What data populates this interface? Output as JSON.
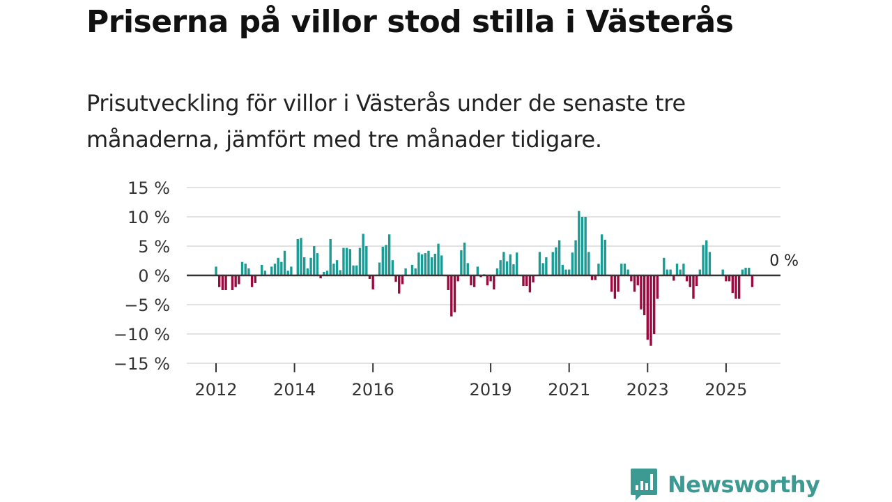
{
  "title": "Priserna på villor stod stilla i Västerås",
  "subtitle": "Prisutveckling för villor i Västerås under de senaste tre månaderna, jämfört med tre månader tidigare.",
  "logo": {
    "text": "Newsworthy"
  },
  "colors": {
    "positive": "#1a9c94",
    "negative": "#9b0a3f",
    "zero_line": "#333333",
    "grid": "#d9d9d9",
    "logo": "#3d9a93"
  },
  "chart_data": {
    "type": "bar",
    "title": "",
    "xlabel": "",
    "ylabel": "",
    "ylim": [
      -15,
      15
    ],
    "y_ticks": [
      15,
      10,
      5,
      0,
      -5,
      -10,
      -15
    ],
    "y_tick_labels": [
      "15 %",
      "10 %",
      "5 %",
      "0 %",
      "−5 %",
      "−10 %",
      "−15 %"
    ],
    "x_ticks": [
      2012,
      2014,
      2016,
      2019,
      2021,
      2023,
      2025
    ],
    "x_tick_labels": [
      "2012",
      "2014",
      "2016",
      "2019",
      "2021",
      "2023",
      "2025"
    ],
    "start": {
      "year": 2012,
      "month": 1
    },
    "annotation": {
      "text": "0 %",
      "at_index": 168
    },
    "categories": [
      "2012-01",
      "2012-02",
      "2012-03",
      "2012-04",
      "2012-05",
      "2012-06",
      "2012-07",
      "2012-08",
      "2012-09",
      "2012-10",
      "2012-11",
      "2012-12",
      "2013-01",
      "2013-02",
      "2013-03",
      "2013-04",
      "2013-05",
      "2013-06",
      "2013-07",
      "2013-08",
      "2013-09",
      "2013-10",
      "2013-11",
      "2013-12",
      "2014-01",
      "2014-02",
      "2014-03",
      "2014-04",
      "2014-05",
      "2014-06",
      "2014-07",
      "2014-08",
      "2014-09",
      "2014-10",
      "2014-11",
      "2014-12",
      "2015-01",
      "2015-02",
      "2015-03",
      "2015-04",
      "2015-05",
      "2015-06",
      "2015-07",
      "2015-08",
      "2015-09",
      "2015-10",
      "2015-11",
      "2015-12",
      "2016-01",
      "2016-02",
      "2016-03",
      "2016-04",
      "2016-05",
      "2016-06",
      "2016-07",
      "2016-08",
      "2016-09",
      "2016-10",
      "2016-11",
      "2016-12",
      "2017-01",
      "2017-02",
      "2017-03",
      "2017-04",
      "2017-05",
      "2017-06",
      "2017-07",
      "2017-08",
      "2017-09",
      "2017-10",
      "2017-11",
      "2017-12",
      "2018-01",
      "2018-02",
      "2018-03",
      "2018-04",
      "2018-05",
      "2018-06",
      "2018-07",
      "2018-08",
      "2018-09",
      "2018-10",
      "2018-11",
      "2018-12",
      "2019-01",
      "2019-02",
      "2019-03",
      "2019-04",
      "2019-05",
      "2019-06",
      "2019-07",
      "2019-08",
      "2019-09",
      "2019-10",
      "2019-11",
      "2019-12",
      "2020-01",
      "2020-02",
      "2020-03",
      "2020-04",
      "2020-05",
      "2020-06",
      "2020-07",
      "2020-08",
      "2020-09",
      "2020-10",
      "2020-11",
      "2020-12",
      "2021-01",
      "2021-02",
      "2021-03",
      "2021-04",
      "2021-05",
      "2021-06",
      "2021-07",
      "2021-08",
      "2021-09",
      "2021-10",
      "2021-11",
      "2021-12",
      "2022-01",
      "2022-02",
      "2022-03",
      "2022-04",
      "2022-05",
      "2022-06",
      "2022-07",
      "2022-08",
      "2022-09",
      "2022-10",
      "2022-11",
      "2022-12",
      "2023-01",
      "2023-02",
      "2023-03",
      "2023-04",
      "2023-05",
      "2023-06",
      "2023-07",
      "2023-08",
      "2023-09",
      "2023-10",
      "2023-11",
      "2023-12",
      "2024-01",
      "2024-02",
      "2024-03",
      "2024-04",
      "2024-05",
      "2024-06",
      "2024-07",
      "2024-08",
      "2024-09",
      "2024-10",
      "2024-11",
      "2024-12",
      "2025-01",
      "2025-02",
      "2025-03",
      "2025-04",
      "2025-05",
      "2025-06",
      "2025-07",
      "2025-08",
      "2025-09"
    ],
    "values": [
      1.5,
      -2,
      -2.5,
      -2.5,
      0,
      -2.5,
      -2,
      -1.5,
      2.3,
      2,
      1.2,
      -2,
      -1.3,
      0,
      1.8,
      0.8,
      0,
      1.5,
      2,
      3,
      2.3,
      4.2,
      0.8,
      1.5,
      0,
      6.2,
      6.4,
      3.1,
      1.2,
      3,
      5,
      3.8,
      -0.5,
      0.6,
      0.8,
      6.2,
      2,
      2.6,
      0.9,
      4.7,
      4.7,
      4.5,
      1.7,
      1.7,
      4.7,
      7.1,
      5,
      -0.6,
      -2.4,
      0,
      2.2,
      4.9,
      5.2,
      7,
      2.6,
      -1.1,
      -3.1,
      -1.5,
      1.2,
      0,
      1.8,
      1.2,
      3.9,
      3.6,
      3.8,
      4.2,
      3.1,
      3.7,
      5.4,
      3.4,
      0,
      -2.5,
      -7,
      -6.3,
      -1,
      4.3,
      5.6,
      2.1,
      -1.7,
      -2,
      1.5,
      -0.3,
      0.2,
      -1.7,
      -1,
      -2.4,
      1.2,
      2.6,
      4,
      2.4,
      3.6,
      1.9,
      3.9,
      0,
      -1.8,
      -1.8,
      -2.9,
      -1.2,
      0,
      4,
      2.1,
      3.1,
      0,
      4,
      4.8,
      6,
      1.8,
      1,
      1,
      3.9,
      6,
      11,
      10,
      10,
      4,
      -0.8,
      -0.8,
      2,
      7,
      6.1,
      0,
      -2.8,
      -4,
      -2.8,
      2,
      2,
      1,
      -1,
      -2.8,
      -1.7,
      -5.8,
      -6.8,
      -11,
      -12,
      -10,
      -4,
      0,
      3,
      1,
      1,
      -0.9,
      2,
      1,
      2,
      -1,
      -2,
      -4,
      -1.8,
      1,
      5.2,
      6,
      4,
      0,
      0,
      0,
      1,
      -1,
      -1,
      -3,
      -4,
      -4,
      1,
      1.3,
      1.3,
      -2
    ]
  }
}
